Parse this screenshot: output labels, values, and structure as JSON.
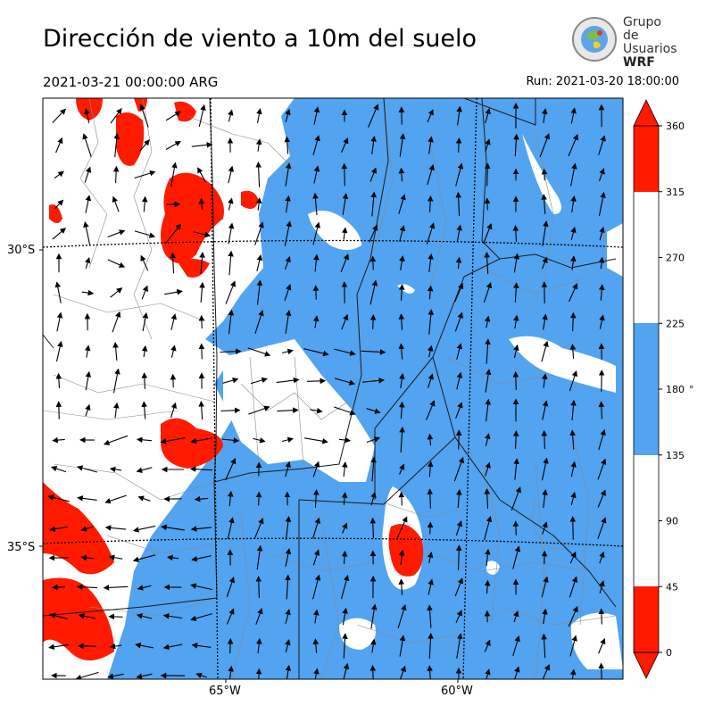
{
  "title": "Dirección de viento a 10m del suelo",
  "valid_time": "2021-03-21 00:00:00 ARG",
  "run_time": "Run: 2021-03-20 18:00:00",
  "logo": {
    "line1": "Grupo de",
    "line2": "Usuarios",
    "line3": "WRF"
  },
  "axes": {
    "lat_labels": [
      "30°S",
      "35°S"
    ],
    "lon_labels": [
      "65°W",
      "60°W"
    ]
  },
  "colorbar": {
    "ticks": [
      "0",
      "45",
      "90",
      "135",
      "180",
      "225",
      "270",
      "315",
      "360"
    ],
    "unit": "°",
    "colors": {
      "north": "#ff1a00",
      "south": "#52a3f0",
      "other": "#ffffff"
    }
  },
  "colors": {
    "frame": "#000000",
    "province_border": "#1a1a1a",
    "department_border": "#8a8a8a",
    "graticule": "#000000"
  }
}
